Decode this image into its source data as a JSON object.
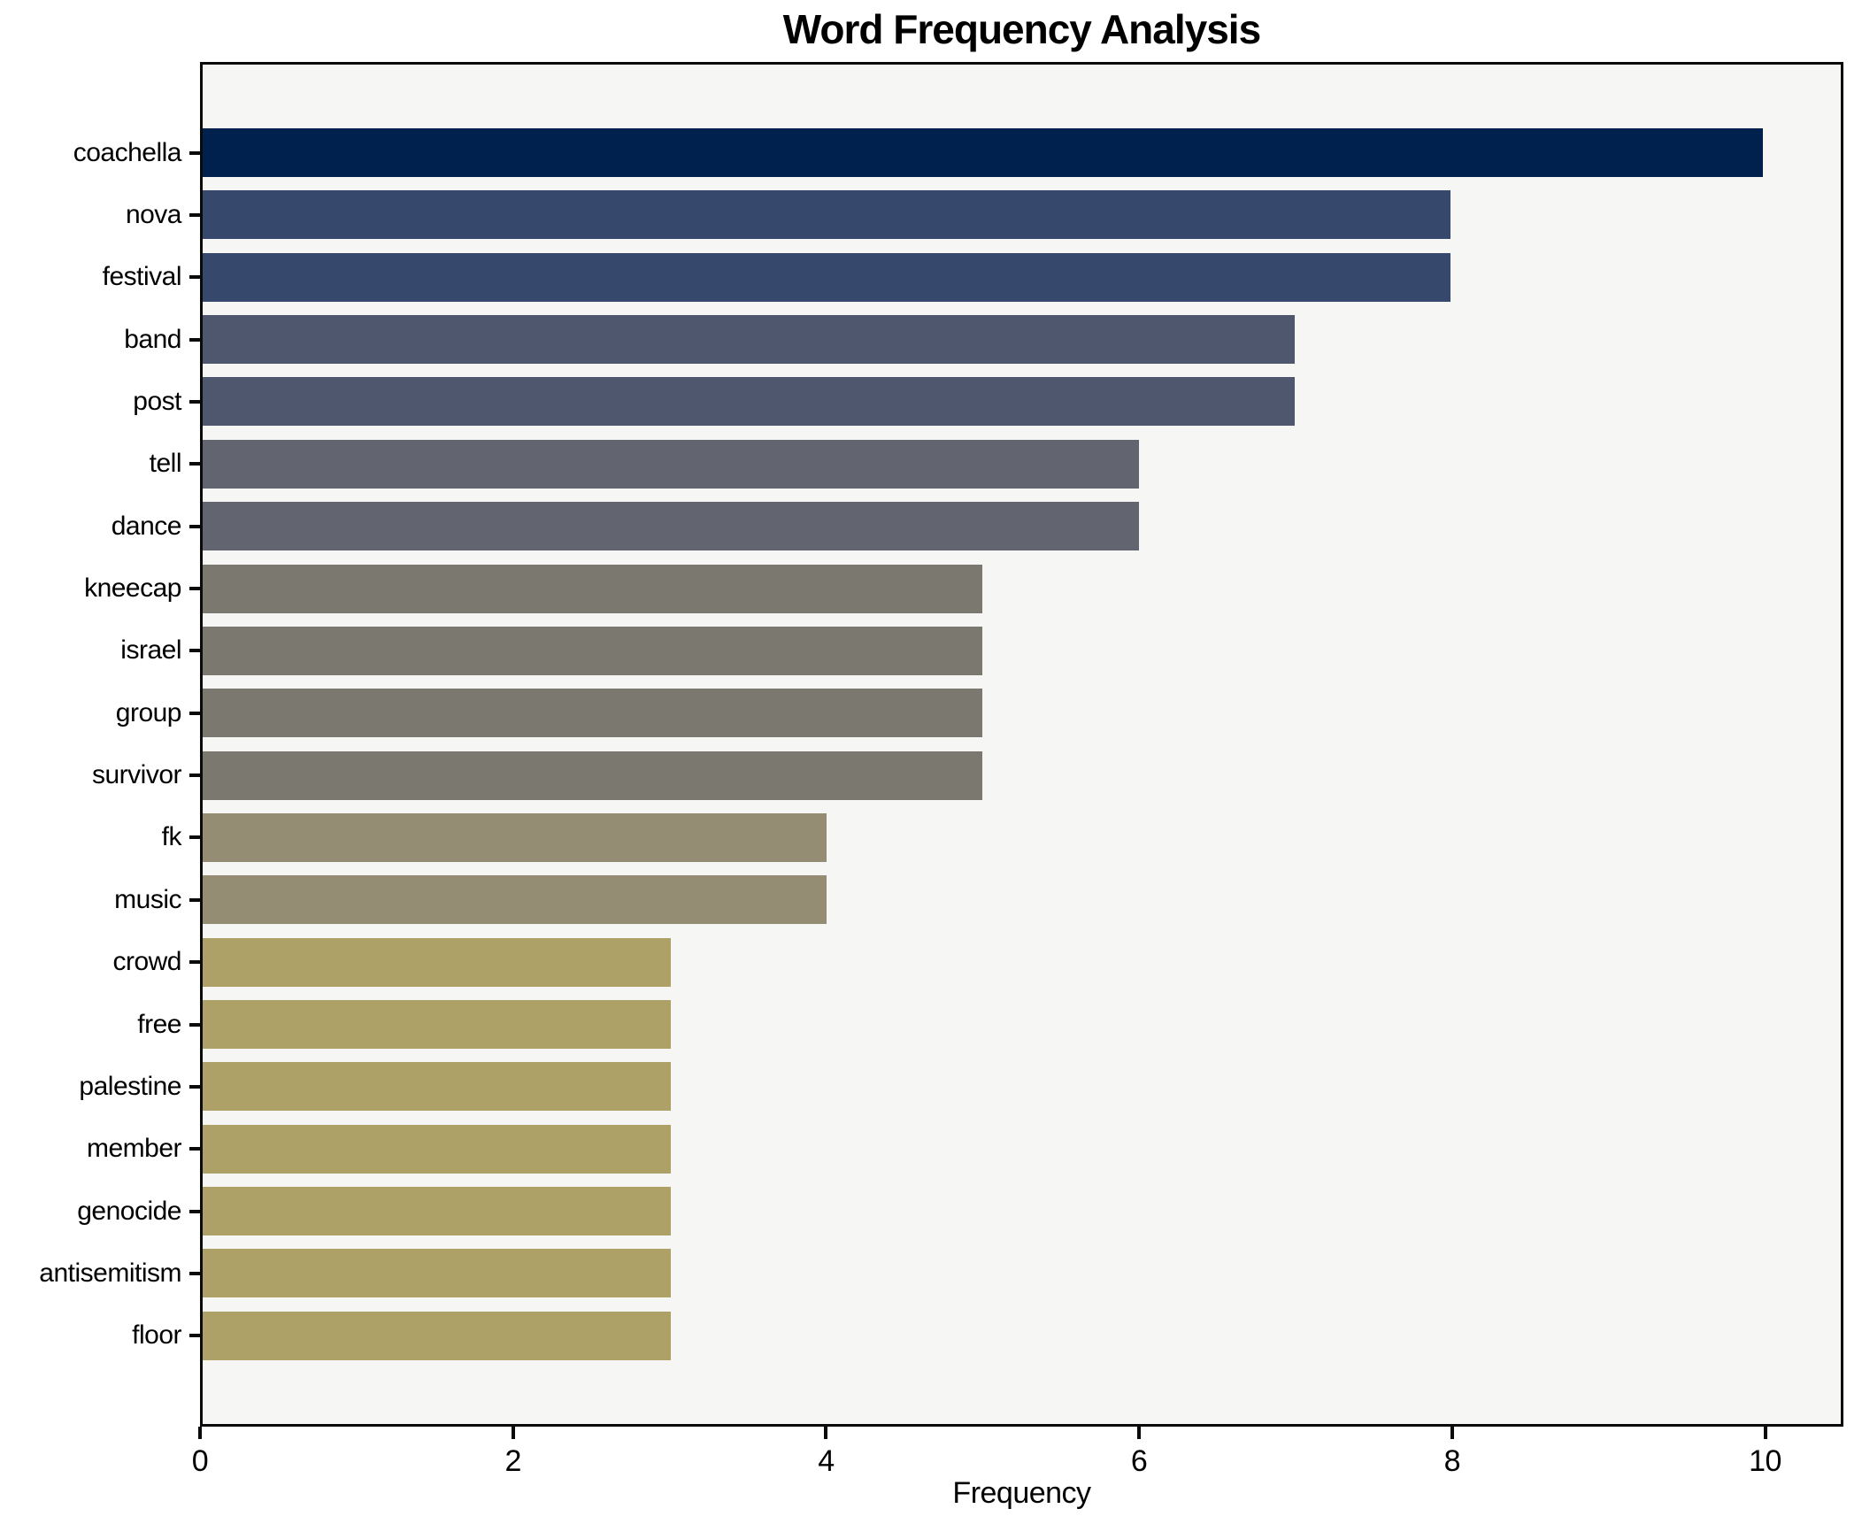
{
  "figure": {
    "background": "#ffffff",
    "plot_background": "#f6f6f5",
    "spine_color": "#0a0a0a",
    "text_color": "#000000"
  },
  "chart_data": {
    "type": "bar",
    "orientation": "horizontal",
    "title": "Word Frequency Analysis",
    "xlabel": "Frequency",
    "ylabel": "",
    "grid": false,
    "legend_position": "none",
    "xlim": [
      0,
      10.5
    ],
    "xticks": [
      "0",
      "2",
      "4",
      "6",
      "8",
      "10"
    ],
    "xtick_values": [
      0,
      2,
      4,
      6,
      8,
      10
    ],
    "categories": [
      "coachella",
      "nova",
      "festival",
      "band",
      "post",
      "tell",
      "dance",
      "kneecap",
      "israel",
      "group",
      "survivor",
      "fk",
      "music",
      "crowd",
      "free",
      "palestine",
      "member",
      "genocide",
      "antisemitism",
      "floor"
    ],
    "values": [
      10,
      8,
      8,
      7,
      7,
      6,
      6,
      5,
      5,
      5,
      5,
      4,
      4,
      3,
      3,
      3,
      3,
      3,
      3,
      3
    ],
    "bar_colors": [
      "#00204d",
      "#36486b",
      "#36486b",
      "#4f576e",
      "#4f576e",
      "#626570",
      "#626570",
      "#7b786f",
      "#7b786f",
      "#7b786f",
      "#7b786f",
      "#948d73",
      "#948d73",
      "#ada167",
      "#ada167",
      "#ada167",
      "#ada167",
      "#ada167",
      "#ada167",
      "#ada167"
    ]
  }
}
